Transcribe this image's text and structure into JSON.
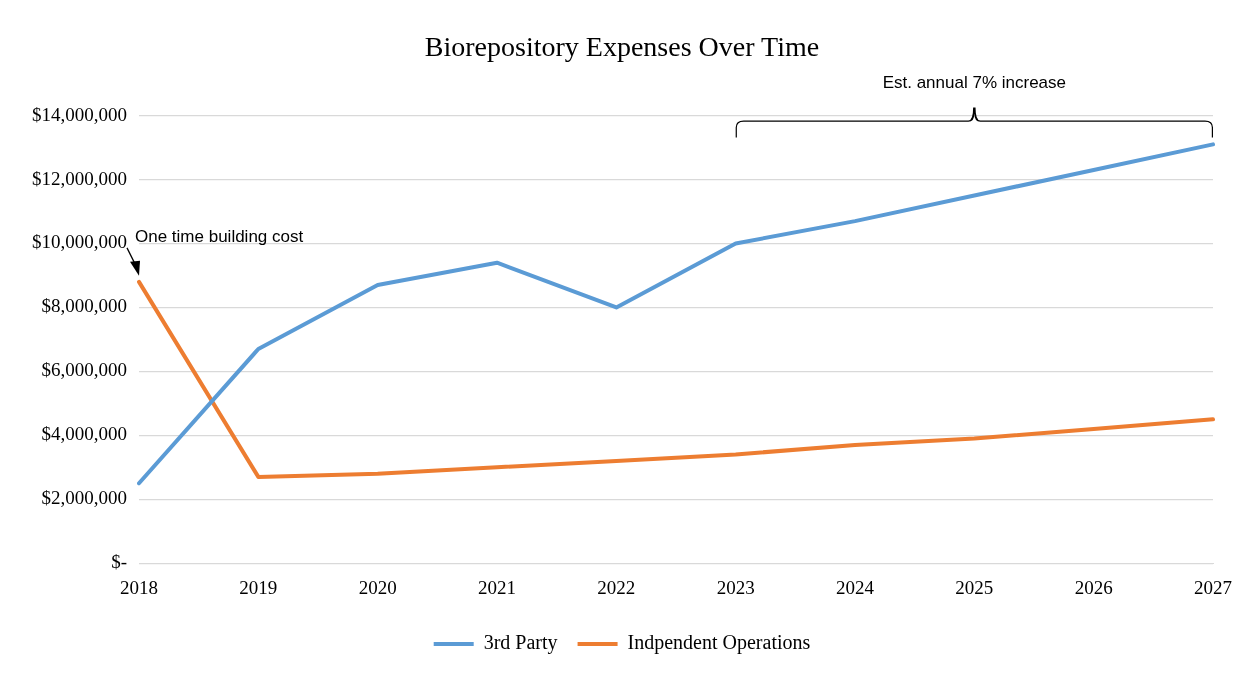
{
  "chart_data": {
    "type": "line",
    "title": "Biorepository Expenses Over Time",
    "categories": [
      "2018",
      "2019",
      "2020",
      "2021",
      "2022",
      "2023",
      "2024",
      "2025",
      "2026",
      "2027"
    ],
    "series": [
      {
        "name": "3rd Party",
        "color": "#5b9bd5",
        "values": [
          2500000,
          6700000,
          8700000,
          9400000,
          8000000,
          10000000,
          10700000,
          11500000,
          12300000,
          13100000
        ]
      },
      {
        "name": "Indpendent Operations",
        "color": "#ed7d31",
        "values": [
          8800000,
          2700000,
          2800000,
          3000000,
          3200000,
          3400000,
          3700000,
          3900000,
          4200000,
          4500000
        ]
      }
    ],
    "ylim": [
      0,
      14000000
    ],
    "yticks": [
      {
        "value": 0,
        "label": "$-"
      },
      {
        "value": 2000000,
        "label": "$2,000,000"
      },
      {
        "value": 4000000,
        "label": "$4,000,000"
      },
      {
        "value": 6000000,
        "label": "$6,000,000"
      },
      {
        "value": 8000000,
        "label": "$8,000,000"
      },
      {
        "value": 10000000,
        "label": "$10,000,000"
      },
      {
        "value": 12000000,
        "label": "$12,000,000"
      },
      {
        "value": 14000000,
        "label": "$14,000,000"
      }
    ],
    "grid": "y",
    "legend": "bottom",
    "marker": "none",
    "line_style": "solid",
    "annotations": [
      {
        "text": "One time building cost",
        "x": "2018",
        "y": 8800000
      },
      "Est. annual 7% increase"
    ]
  }
}
